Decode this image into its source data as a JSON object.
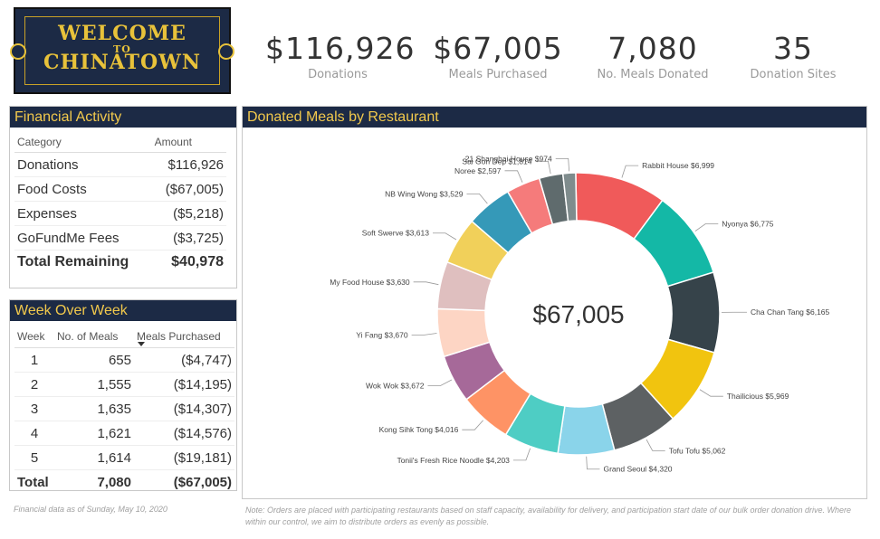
{
  "logo": {
    "line1": "WELCOME",
    "line2": "CHINATOWN",
    "overlay": "TO"
  },
  "kpis": [
    {
      "value": "$116,926",
      "label": "Donations"
    },
    {
      "value": "$67,005",
      "label": "Meals Purchased"
    },
    {
      "value": "7,080",
      "label": "No. Meals Donated"
    },
    {
      "value": "35",
      "label": "Donation Sites"
    }
  ],
  "financial": {
    "title": "Financial Activity",
    "headers": [
      "Category",
      "Amount"
    ],
    "rows": [
      {
        "category": "Donations",
        "amount": "$116,926"
      },
      {
        "category": "Food Costs",
        "amount": "($67,005)"
      },
      {
        "category": "Expenses",
        "amount": "($5,218)"
      },
      {
        "category": "GoFundMe Fees",
        "amount": "($3,725)"
      }
    ],
    "total": {
      "category": "Total Remaining",
      "amount": "$40,978"
    }
  },
  "weekly": {
    "title": "Week Over Week",
    "headers": [
      "Week",
      "No. of Meals",
      "Meals Purchased"
    ],
    "sort_icon": "sort-desc-icon",
    "rows": [
      {
        "week": "1",
        "meals": "655",
        "purchased": "($4,747)"
      },
      {
        "week": "2",
        "meals": "1,555",
        "purchased": "($14,195)"
      },
      {
        "week": "3",
        "meals": "1,635",
        "purchased": "($14,307)"
      },
      {
        "week": "4",
        "meals": "1,621",
        "purchased": "($14,576)"
      },
      {
        "week": "5",
        "meals": "1,614",
        "purchased": "($19,181)"
      }
    ],
    "total": {
      "week": "Total",
      "meals": "7,080",
      "purchased": "($67,005)"
    }
  },
  "chart_data": {
    "type": "pie",
    "variant": "donut",
    "title": "Donated Meals by Restaurant",
    "center_label": "$67,005",
    "slices": [
      {
        "label": "Rabbit House",
        "value": 6999,
        "display": "$6,999",
        "color": "#f05a5a"
      },
      {
        "label": "Nyonya",
        "value": 6775,
        "display": "$6,775",
        "color": "#14b8a6"
      },
      {
        "label": "Cha Chan Tang",
        "value": 6165,
        "display": "$6,165",
        "color": "#36434a"
      },
      {
        "label": "Thailicious",
        "value": 5969,
        "display": "$5,969",
        "color": "#f1c40f"
      },
      {
        "label": "Tofu Tofu",
        "value": 5062,
        "display": "$5,062",
        "color": "#5d6163"
      },
      {
        "label": "Grand Seoul",
        "value": 4320,
        "display": "$4,320",
        "color": "#8ad4ea"
      },
      {
        "label": "Tonii's Fresh Rice Noodle",
        "value": 4203,
        "display": "$4,203",
        "color": "#4ecdc4"
      },
      {
        "label": "Kong Sihk Tong",
        "value": 4016,
        "display": "$4,016",
        "color": "#fe9365"
      },
      {
        "label": "Wok Wok",
        "value": 3672,
        "display": "$3,672",
        "color": "#a66999"
      },
      {
        "label": "Yi Fang",
        "value": 3670,
        "display": "$3,670",
        "color": "#fdd5c4"
      },
      {
        "label": "My Food House",
        "value": 3630,
        "display": "$3,630",
        "color": "#dfbfbf"
      },
      {
        "label": "Soft Swerve",
        "value": 3613,
        "display": "$3,613",
        "color": "#f1d05a"
      },
      {
        "label": "NB Wing Wong",
        "value": 3529,
        "display": "$3,529",
        "color": "#3599b8"
      },
      {
        "label": "Noree",
        "value": 2597,
        "display": "$2,597",
        "color": "#f57b7b"
      },
      {
        "label": "Sai Gon Dep",
        "value": 1814,
        "display": "$1,814",
        "color": "#5f6b6d"
      },
      {
        "label": "21 Shanghai House",
        "value": 974,
        "display": "$974",
        "color": "#7f8c8d"
      }
    ]
  },
  "footnotes": {
    "as_of": "Financial data as of  Sunday, May 10, 2020",
    "note": "Note: Orders are placed with participating restaurants based on staff capacity, availability for delivery, and participation start date of our bulk order donation drive. Where within our control, we aim to distribute orders as evenly as possible."
  }
}
